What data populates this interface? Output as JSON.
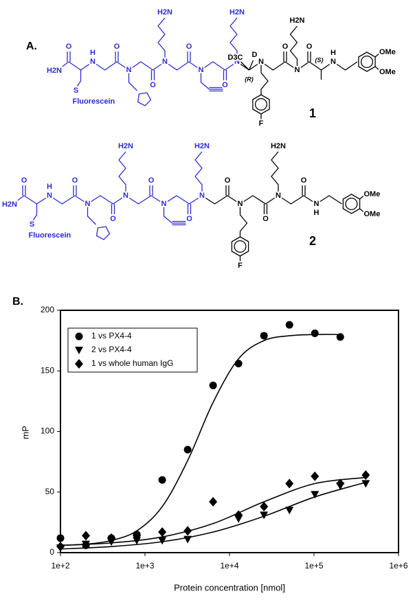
{
  "structures": {
    "label": "A.",
    "compounds": [
      {
        "number": "1",
        "atoms": [
          "O",
          "H2N",
          "H",
          "N",
          "S",
          "Fluorescein",
          "O",
          "N",
          "O",
          "N",
          "H2N",
          "O",
          "N",
          "O",
          "N",
          "H2N",
          "D3C",
          "D",
          "(R)",
          "N",
          "F",
          "O",
          "N",
          "H2N",
          "O",
          "(S)",
          "N",
          "H",
          "OMe",
          "OMe"
        ]
      },
      {
        "number": "2",
        "atoms": [
          "O",
          "H2N",
          "H",
          "N",
          "S",
          "Fluorescein",
          "O",
          "N",
          "O",
          "N",
          "H2N",
          "O",
          "N",
          "O",
          "N",
          "H2N",
          "O",
          "N",
          "F",
          "O",
          "N",
          "H2N",
          "O",
          "N",
          "H",
          "OMe",
          "OMe"
        ]
      }
    ]
  },
  "chart_data": {
    "type": "scatter",
    "title": "B.",
    "xlabel": "Protein concentration [nmol]",
    "ylabel": "mP",
    "xscale": "log",
    "xlim": [
      100,
      1000000
    ],
    "xticks": [
      {
        "value": 100,
        "label": "1e+2"
      },
      {
        "value": 1000,
        "label": "1e+3"
      },
      {
        "value": 10000,
        "label": "1e+4"
      },
      {
        "value": 100000,
        "label": "1e+5"
      },
      {
        "value": 1000000,
        "label": "1e+6"
      }
    ],
    "ylim": [
      0,
      200
    ],
    "yticks": [
      0,
      50,
      100,
      150,
      200
    ],
    "legend": "upper left",
    "series": [
      {
        "name": "1 vs PX4-4",
        "marker": "circle",
        "color": "#000000",
        "x": [
          100,
          200,
          400,
          800,
          1600,
          3200,
          6400,
          12800,
          25600,
          51200,
          102400,
          204800
        ],
        "values": [
          12,
          6,
          12,
          15,
          60,
          85,
          138,
          156,
          179,
          188,
          181,
          178
        ]
      },
      {
        "name": "2 vs PX4-4",
        "marker": "triangle-down",
        "color": "#000000",
        "x": [
          100,
          200,
          400,
          800,
          1600,
          3200,
          12800,
          25600,
          51200,
          102400,
          204800,
          409600
        ],
        "values": [
          4,
          7,
          9,
          10,
          10,
          11,
          28,
          31,
          35,
          48,
          55,
          57
        ]
      },
      {
        "name": "1 vs whole human IgG",
        "marker": "diamond",
        "color": "#000000",
        "x": [
          100,
          200,
          400,
          800,
          1600,
          3200,
          6400,
          12800,
          25600,
          51200,
          102400,
          204800,
          409600
        ],
        "values": [
          5,
          14,
          12,
          14,
          17,
          18,
          42,
          31,
          38,
          57,
          63,
          57,
          64
        ]
      }
    ],
    "fit_lines": [
      {
        "color": "#000000",
        "x": [
          100,
          200,
          400,
          800,
          1600,
          3200,
          6400,
          12800,
          25600,
          51200,
          102400,
          204800
        ],
        "values": [
          6,
          7,
          10,
          18,
          38,
          76,
          124,
          160,
          175,
          179,
          180,
          180
        ]
      },
      {
        "color": "#000000",
        "x": [
          100,
          400,
          1600,
          6400,
          25600,
          102400,
          409600
        ],
        "values": [
          3,
          5,
          9,
          17,
          30,
          46,
          58
        ]
      },
      {
        "color": "#000000",
        "x": [
          100,
          400,
          1600,
          6400,
          25600,
          102400,
          409600
        ],
        "values": [
          6,
          8,
          13,
          24,
          42,
          57,
          62
        ]
      }
    ]
  }
}
